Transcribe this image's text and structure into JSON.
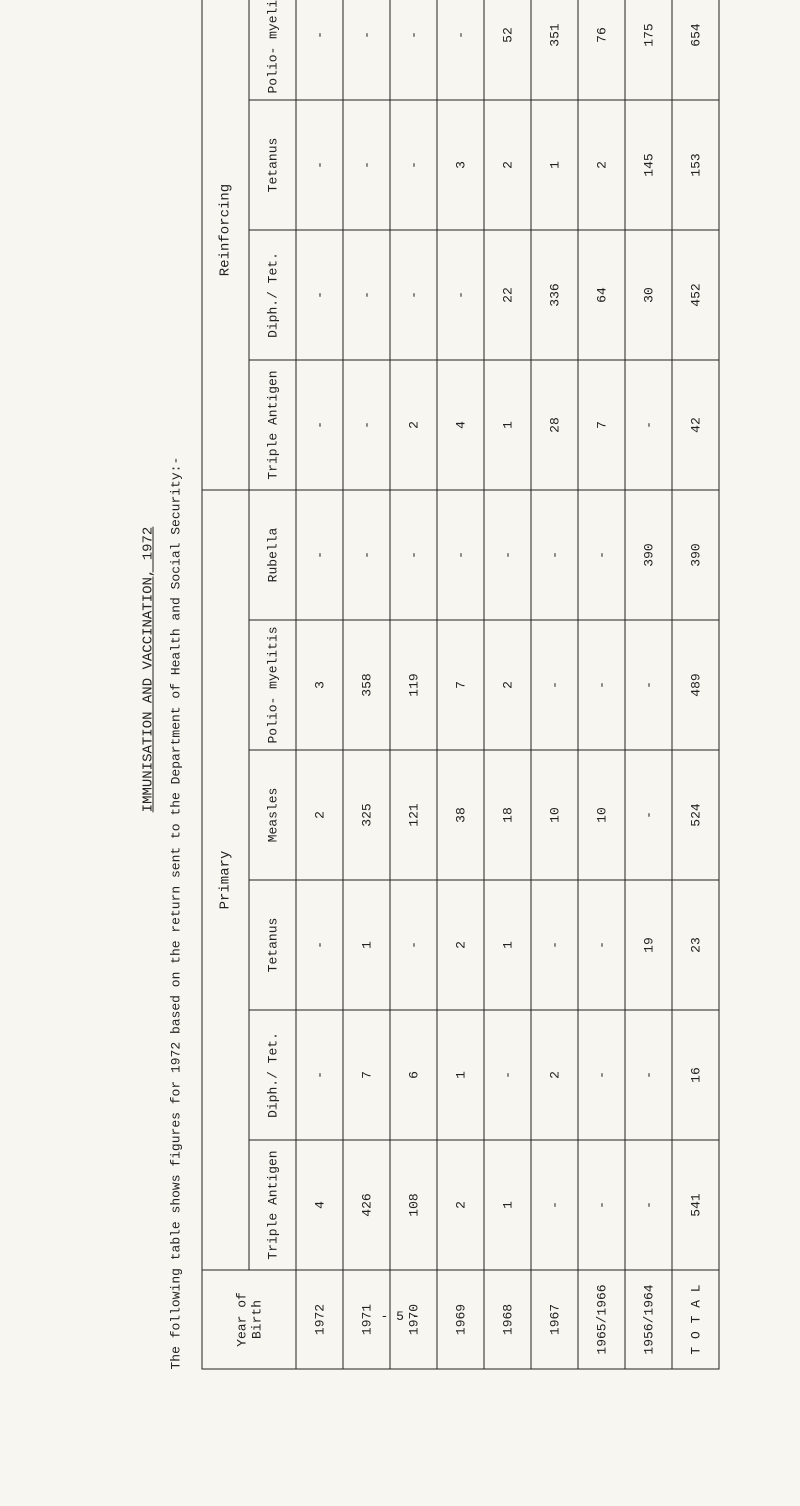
{
  "title": "IMMUNISATION AND VACCINATION, 1972",
  "subtitle": "The following table shows figures for 1972 based on the return sent to the Department of Health and Social Security:-",
  "sections": {
    "primary": "Primary",
    "reinforcing": "Reinforcing"
  },
  "columns": {
    "year": "Year of Birth",
    "primary": [
      "Triple Antigen",
      "Diph./ Tet.",
      "Tetanus",
      "Measles",
      "Polio- myelitis",
      "Rubella"
    ],
    "reinforcing": [
      "Triple Antigen",
      "Diph./ Tet.",
      "Tetanus",
      "Polio- myelitis"
    ]
  },
  "rows": [
    {
      "year": "1972",
      "p": [
        "4",
        "-",
        "-",
        "2",
        "3",
        "-"
      ],
      "r": [
        "-",
        "-",
        "-",
        "-"
      ]
    },
    {
      "year": "1971",
      "p": [
        "426",
        "7",
        "1",
        "325",
        "358",
        "-"
      ],
      "r": [
        "-",
        "-",
        "-",
        "-"
      ]
    },
    {
      "year": "1970",
      "p": [
        "108",
        "6",
        "-",
        "121",
        "119",
        "-"
      ],
      "r": [
        "2",
        "-",
        "-",
        "-"
      ]
    },
    {
      "year": "1969",
      "p": [
        "2",
        "1",
        "2",
        "38",
        "7",
        "-"
      ],
      "r": [
        "4",
        "-",
        "3",
        "-"
      ]
    },
    {
      "year": "1968",
      "p": [
        "1",
        "-",
        "1",
        "18",
        "2",
        "-"
      ],
      "r": [
        "1",
        "22",
        "2",
        "52"
      ]
    },
    {
      "year": "1967",
      "p": [
        "-",
        "2",
        "-",
        "10",
        "-",
        "-"
      ],
      "r": [
        "28",
        "336",
        "1",
        "351"
      ]
    },
    {
      "year": "1965/1966",
      "p": [
        "-",
        "-",
        "-",
        "10",
        "-",
        "-"
      ],
      "r": [
        "7",
        "64",
        "2",
        "76"
      ]
    },
    {
      "year": "1956/1964",
      "p": [
        "-",
        "-",
        "19",
        "-",
        "-",
        "390"
      ],
      "r": [
        "-",
        "30",
        "145",
        "175"
      ]
    }
  ],
  "total": {
    "label": "T O T A L",
    "p": [
      "541",
      "16",
      "23",
      "524",
      "489",
      "390"
    ],
    "r": [
      "42",
      "452",
      "153",
      "654"
    ]
  },
  "page_number": "- 5 -"
}
